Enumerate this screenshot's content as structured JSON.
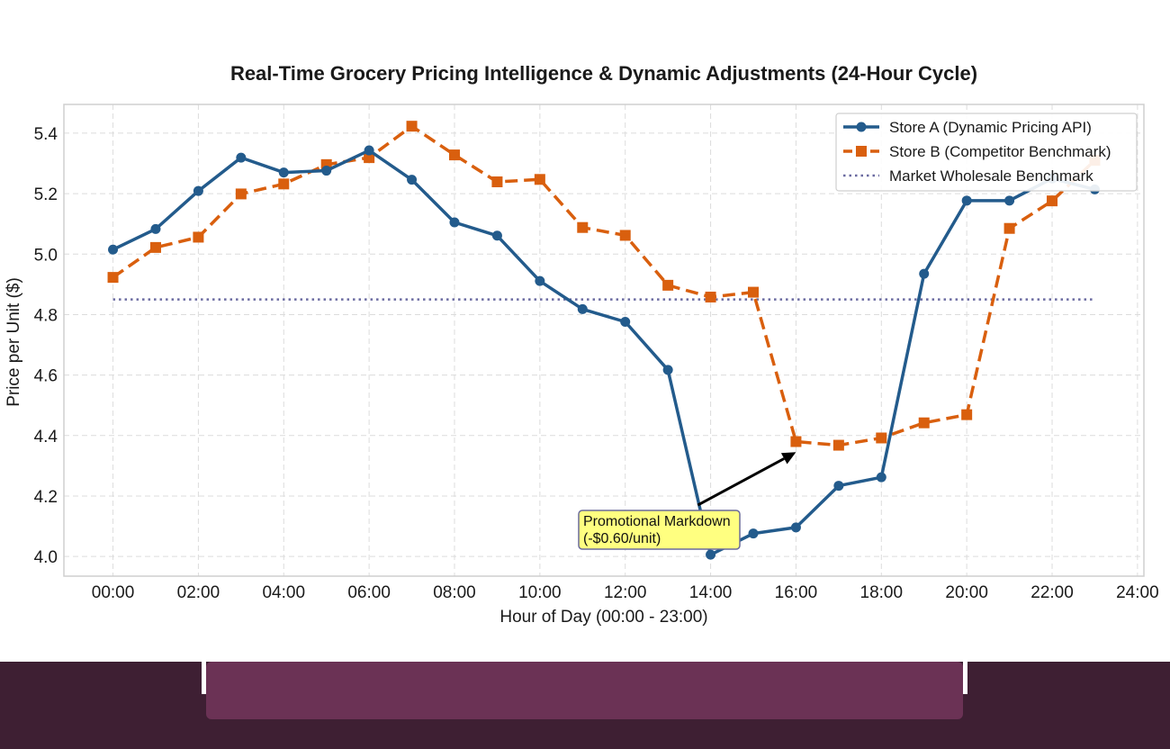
{
  "chart_data": {
    "type": "line",
    "title": "Real-Time Grocery Pricing Intelligence & Dynamic Adjustments (24-Hour Cycle)",
    "xlabel": "Hour of Day (00:00 - 23:00)",
    "ylabel": "Price per Unit ($)",
    "xlim": [
      -1.15,
      24.15
    ],
    "ylim": [
      3.935,
      5.495
    ],
    "x_ticks": [
      0,
      2,
      4,
      6,
      8,
      10,
      12,
      14,
      16,
      18,
      20,
      22,
      24
    ],
    "x_tick_labels": [
      "00:00",
      "02:00",
      "04:00",
      "06:00",
      "08:00",
      "10:00",
      "12:00",
      "14:00",
      "16:00",
      "18:00",
      "20:00",
      "22:00",
      "24:00"
    ],
    "y_ticks": [
      4.0,
      4.2,
      4.4,
      4.6,
      4.8,
      5.0,
      5.2,
      5.4
    ],
    "y_tick_labels": [
      "4.0",
      "4.2",
      "4.4",
      "4.6",
      "4.8",
      "5.0",
      "5.2",
      "5.4"
    ],
    "grid": true,
    "legend_position": "top-right",
    "x": [
      0,
      1,
      2,
      3,
      4,
      5,
      6,
      7,
      8,
      9,
      10,
      11,
      12,
      13,
      14,
      15,
      16,
      17,
      18,
      19,
      20,
      21,
      22,
      23
    ],
    "series": [
      {
        "name": "Store A (Dynamic Pricing API)",
        "color": "#235b8c",
        "marker": "circle",
        "line_style": "solid",
        "values": [
          5.015,
          5.083,
          5.209,
          5.319,
          5.27,
          5.276,
          5.343,
          5.246,
          5.105,
          5.061,
          4.911,
          4.818,
          4.776,
          4.617,
          4.006,
          4.076,
          4.096,
          4.234,
          4.262,
          4.935,
          5.177,
          5.177,
          5.25,
          5.214
        ]
      },
      {
        "name": "Store B (Competitor Benchmark)",
        "color": "#d95f0e",
        "marker": "square",
        "line_style": "dashed",
        "values": [
          4.923,
          5.022,
          5.056,
          5.199,
          5.232,
          5.296,
          5.319,
          5.423,
          5.328,
          5.239,
          5.247,
          5.088,
          5.062,
          4.897,
          4.858,
          4.874,
          4.38,
          4.368,
          4.392,
          4.442,
          4.469,
          5.085,
          5.176,
          5.31
        ]
      },
      {
        "name": "Market Wholesale Benchmark",
        "color": "#6a6aa0",
        "marker": "none",
        "line_style": "dotted",
        "values": [
          4.85,
          4.85,
          4.85,
          4.85,
          4.85,
          4.85,
          4.85,
          4.85,
          4.85,
          4.85,
          4.85,
          4.85,
          4.85,
          4.85,
          4.85,
          4.85,
          4.85,
          4.85,
          4.85,
          4.85,
          4.85,
          4.85,
          4.85,
          4.85
        ]
      }
    ],
    "annotations": [
      {
        "text_line1": "Promotional Markdown",
        "text_line2": "(-$0.60/unit)",
        "arrow_from": [
          13.7,
          4.17
        ],
        "arrow_to": [
          16.0,
          4.345
        ],
        "box_color": "#ffff80"
      }
    ]
  }
}
